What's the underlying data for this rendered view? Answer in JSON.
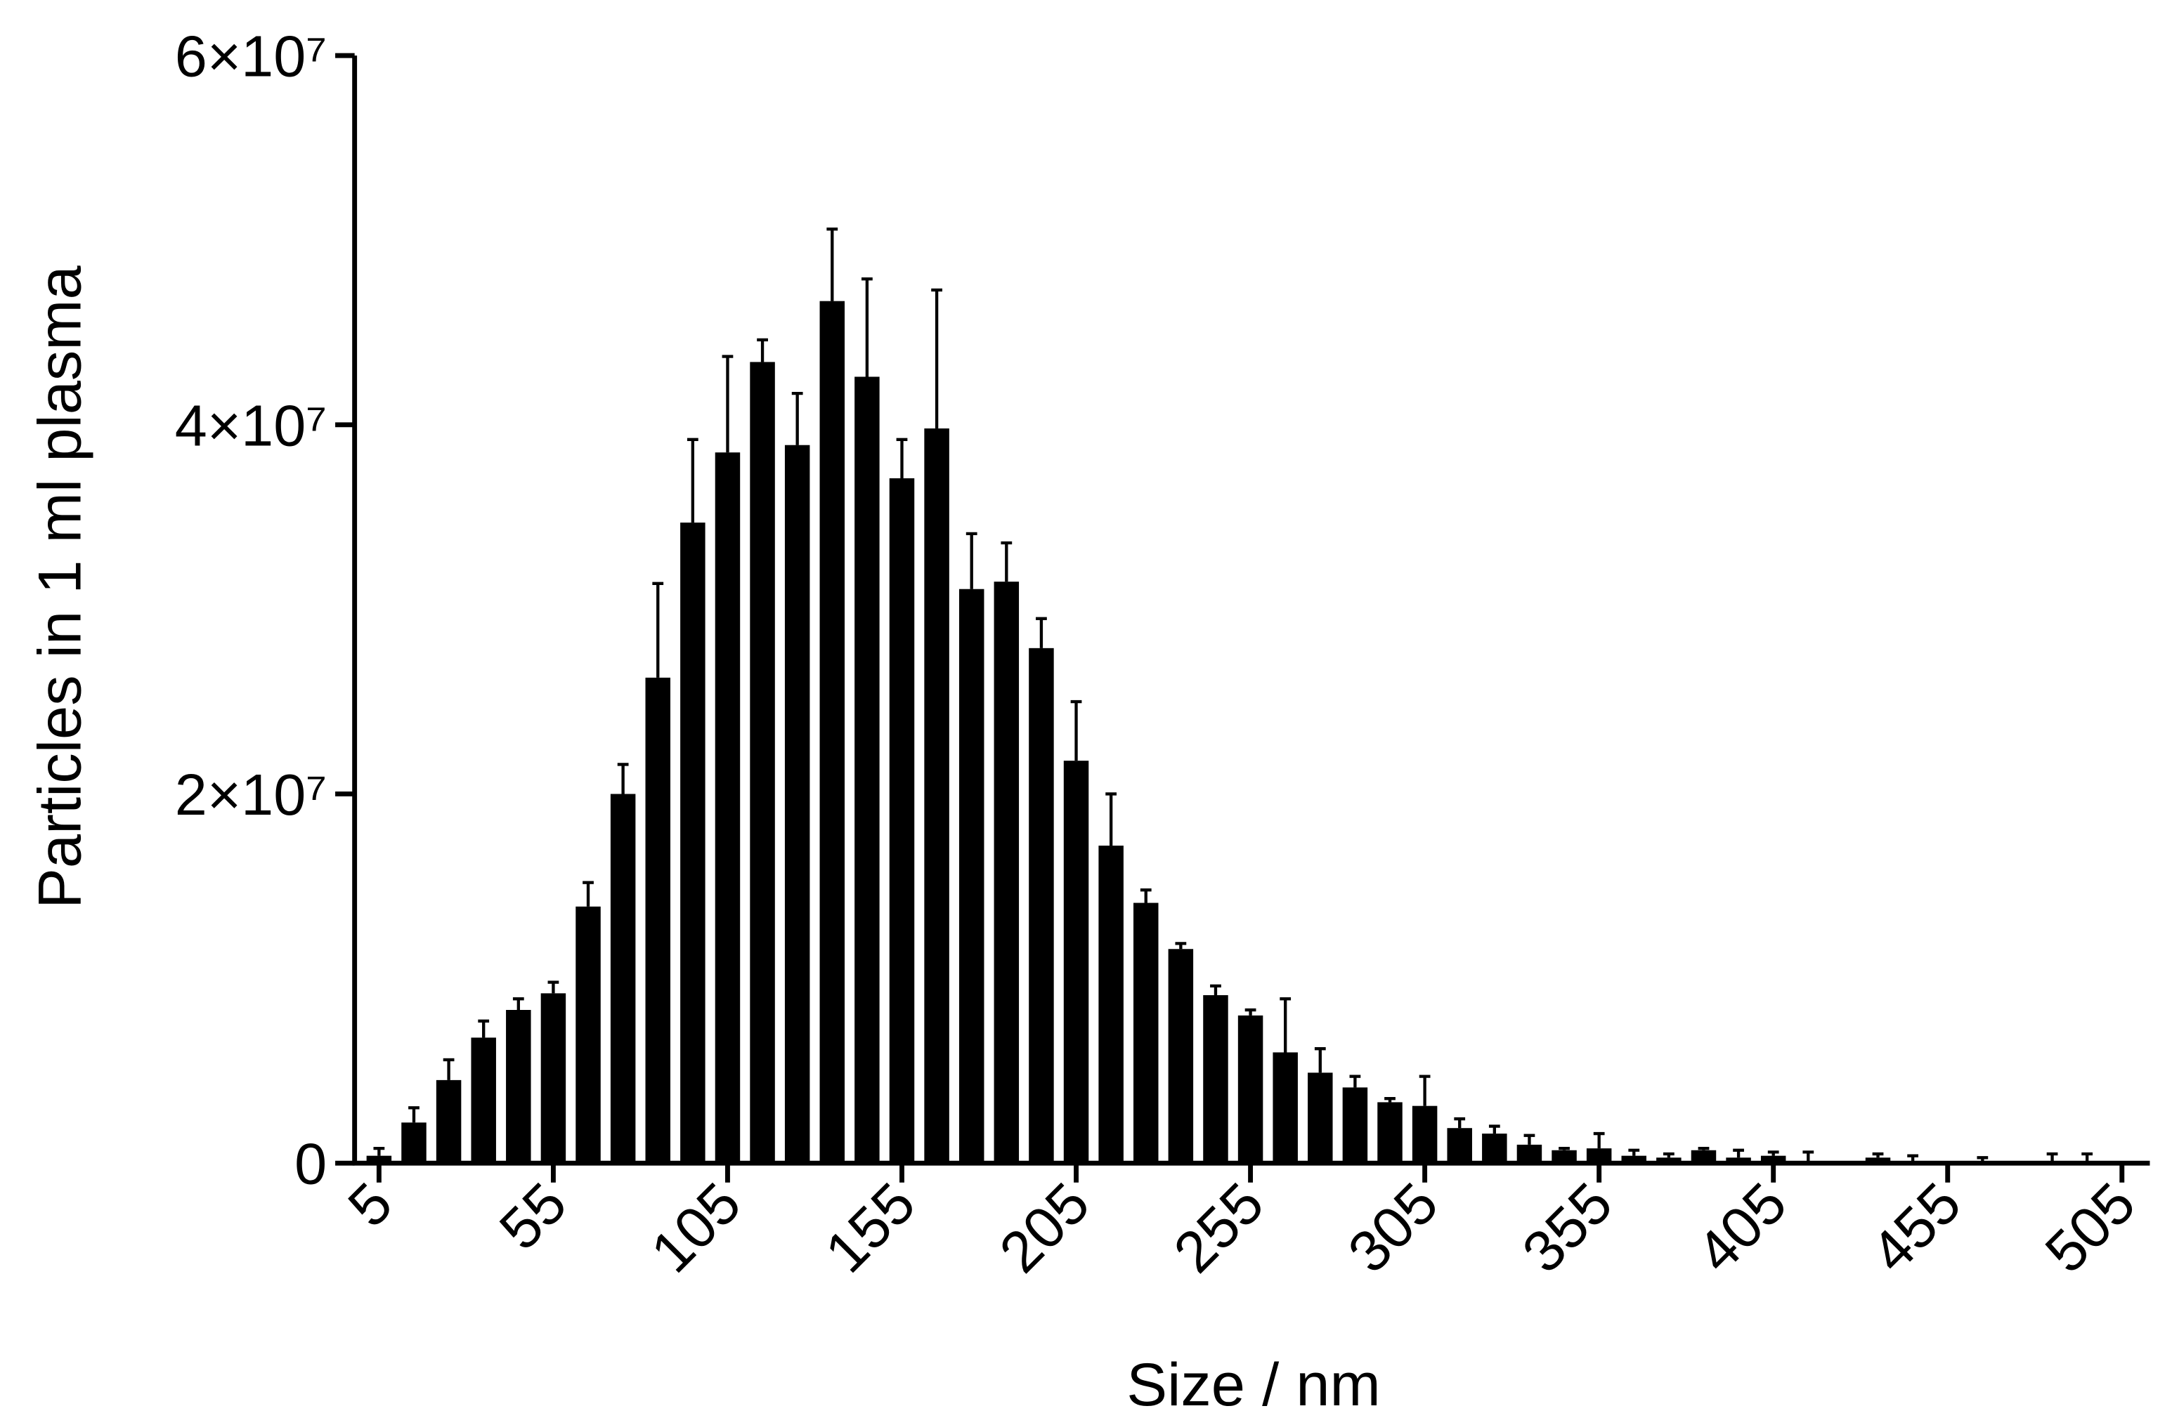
{
  "chart_data": {
    "type": "bar",
    "x_label": "Size / nm",
    "y_label": "Particles in 1 ml plasma",
    "color": "#000000",
    "x": [
      5,
      15,
      25,
      35,
      45,
      55,
      65,
      75,
      85,
      95,
      105,
      115,
      125,
      135,
      145,
      155,
      165,
      175,
      185,
      195,
      205,
      215,
      225,
      235,
      245,
      255,
      265,
      275,
      285,
      295,
      305,
      315,
      325,
      335,
      345,
      355,
      365,
      375,
      385,
      395,
      405,
      415,
      425,
      435,
      445,
      455,
      465,
      475,
      485,
      495
    ],
    "values": [
      400000,
      2200000,
      4500000,
      6800000,
      8300000,
      9200000,
      13900000,
      20000000,
      26300000,
      34700000,
      38500000,
      43400000,
      38900000,
      46700000,
      42600000,
      37100000,
      39800000,
      31100000,
      31500000,
      27900000,
      21800000,
      17200000,
      14100000,
      11600000,
      9100000,
      8000000,
      6000000,
      4900000,
      4100000,
      3300000,
      3100000,
      1900000,
      1600000,
      1000000,
      700000,
      800000,
      400000,
      300000,
      700000,
      300000,
      400000,
      100000,
      0,
      300000,
      100000,
      0,
      100000,
      0,
      100000,
      100000
    ],
    "errors": [
      400000,
      800000,
      1100000,
      900000,
      600000,
      600000,
      1300000,
      1600000,
      5100000,
      4500000,
      5200000,
      1200000,
      2800000,
      3900000,
      5300000,
      2100000,
      7500000,
      3000000,
      2100000,
      1600000,
      3200000,
      2800000,
      700000,
      300000,
      500000,
      300000,
      2900000,
      1300000,
      600000,
      200000,
      1600000,
      500000,
      400000,
      500000,
      100000,
      800000,
      300000,
      200000,
      100000,
      400000,
      200000,
      500000,
      0,
      200000,
      300000,
      0,
      200000,
      0,
      400000,
      400000
    ],
    "xlim": [
      -2,
      513
    ],
    "xticks": [
      5,
      55,
      105,
      155,
      205,
      255,
      305,
      355,
      405,
      455,
      505
    ],
    "ylim": [
      0,
      60000000
    ],
    "yticks": [
      {
        "value": 0,
        "label": "0"
      },
      {
        "value": 20000000,
        "label": "2×10⁷"
      },
      {
        "value": 40000000,
        "label": "4×10⁷"
      },
      {
        "value": 60000000,
        "label": "6×10⁷"
      }
    ]
  }
}
